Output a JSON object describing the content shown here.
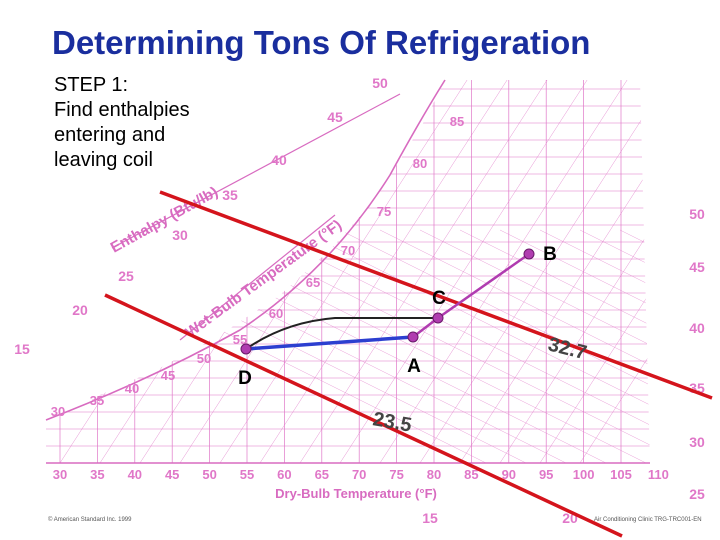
{
  "slide": {
    "title": "Determining Tons Of Refrigeration",
    "step_lines": [
      "STEP 1:",
      "Find enthalpies",
      "entering and",
      "leaving coil"
    ],
    "footer_left": "© American Standard Inc. 1999",
    "footer_right": "Air Conditioning Clinic TRG-TRC001-EN"
  },
  "chart_data": {
    "type": "psychrometric",
    "xlabel": "Dry-Bulb Temperature (°F)",
    "x_ticks": [
      "30",
      "35",
      "40",
      "45",
      "50",
      "55",
      "60",
      "65",
      "70",
      "75",
      "80",
      "85",
      "90",
      "95",
      "100",
      "105",
      "110"
    ],
    "wetbulb_label": "Wet-Bulb Temperature (°F)",
    "wetbulb_ticks": [
      "35",
      "40",
      "45",
      "50",
      "55",
      "60",
      "65",
      "70",
      "75",
      "80",
      "85"
    ],
    "enthalpy_label": "Enthalpy (Btu/lb)",
    "enthalpy_ticks": [
      "15",
      "20",
      "25",
      "30",
      "35",
      "40",
      "45",
      "50"
    ],
    "right_scale_ticks": [
      "50",
      "45",
      "40",
      "35",
      "30",
      "25"
    ],
    "bottom_scale_ticks": [
      "15",
      "20"
    ],
    "points": [
      {
        "label": "A",
        "db": 80,
        "wb": 67
      },
      {
        "label": "B",
        "db": 95
      },
      {
        "label": "C",
        "db": 81
      },
      {
        "label": "D",
        "db": 55,
        "wb": 54
      }
    ],
    "enthalpy_values": [
      {
        "label": "23.5",
        "point": "D"
      },
      {
        "label": "32.7",
        "point": "C"
      }
    ],
    "colors": {
      "grid": "#e077c8",
      "enthalpy_line": "#d4141c",
      "process": "#2c3fd0",
      "mix": "#b03cb0"
    }
  }
}
